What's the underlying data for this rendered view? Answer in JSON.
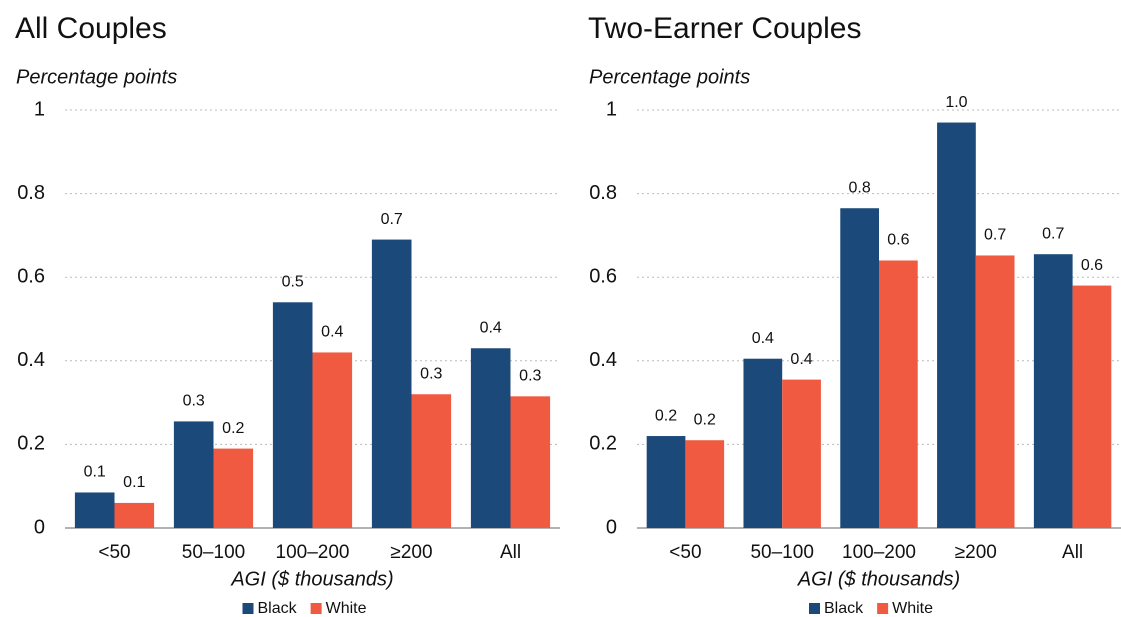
{
  "chart_data": [
    {
      "type": "bar",
      "title": "All Couples",
      "y_label": "Percentage points",
      "x_label": "AGI ($ thousands)",
      "categories": [
        "<50",
        "50–100",
        "100–200",
        "≥200",
        "All"
      ],
      "series": [
        {
          "name": "Black",
          "color": "#1b497a",
          "values": [
            0.085,
            0.255,
            0.54,
            0.69,
            0.43
          ],
          "value_labels": [
            "0.1",
            "0.3",
            "0.5",
            "0.7",
            "0.4"
          ]
        },
        {
          "name": "White",
          "color": "#f05a40",
          "values": [
            0.06,
            0.19,
            0.42,
            0.32,
            0.315
          ],
          "value_labels": [
            "0.1",
            "0.2",
            "0.4",
            "0.3",
            "0.3"
          ]
        }
      ],
      "ylim": [
        0,
        1
      ],
      "yticks": [
        0,
        0.2,
        0.4,
        0.6,
        0.8,
        1
      ],
      "grid": true,
      "legend": "bottom"
    },
    {
      "type": "bar",
      "title": "Two-Earner Couples",
      "y_label": "Percentage points",
      "x_label": "AGI ($ thousands)",
      "categories": [
        "<50",
        "50–100",
        "100–200",
        "≥200",
        "All"
      ],
      "series": [
        {
          "name": "Black",
          "color": "#1b497a",
          "values": [
            0.22,
            0.405,
            0.765,
            0.97,
            0.655
          ],
          "value_labels": [
            "0.2",
            "0.4",
            "0.8",
            "1.0",
            "0.7"
          ]
        },
        {
          "name": "White",
          "color": "#f05a40",
          "values": [
            0.21,
            0.355,
            0.64,
            0.652,
            0.58
          ],
          "value_labels": [
            "0.2",
            "0.4",
            "0.6",
            "0.7",
            "0.6"
          ]
        }
      ],
      "ylim": [
        0,
        1
      ],
      "yticks": [
        0,
        0.2,
        0.4,
        0.6,
        0.8,
        1
      ],
      "grid": true,
      "legend": "bottom"
    }
  ]
}
